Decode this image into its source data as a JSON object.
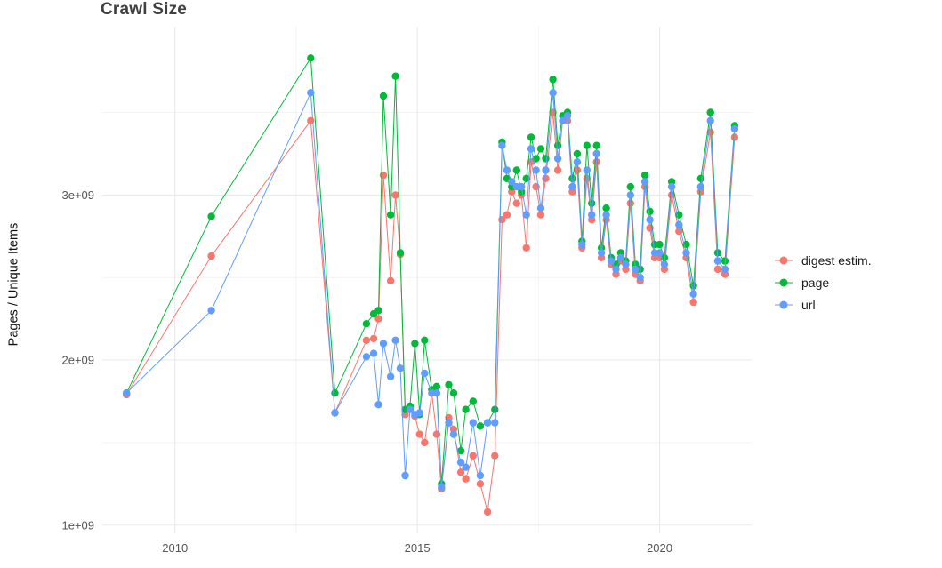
{
  "chart_data": {
    "type": "line",
    "title": "Crawl Size",
    "ylabel": "Pages / Unique Items",
    "xlabel": "",
    "legend_position": "right",
    "background": "#FFFFFF",
    "grid": {
      "major_color": "#E8E8E8",
      "minor_color": "#F4F4F4",
      "x_major": [
        2010,
        2015,
        2020
      ],
      "x_minor": [
        2012.5,
        2017.5
      ],
      "y_major": [
        1,
        2,
        3
      ],
      "y_minor": [
        1.5,
        2.5,
        3.5
      ]
    },
    "x_tick_labels": [
      "2010",
      "2015",
      "2020"
    ],
    "y_tick_labels": [
      "1e+09",
      "2e+09",
      "3e+09"
    ],
    "xlim": [
      2008.5,
      2021.9
    ],
    "ylim": [
      0.95,
      4.02
    ],
    "y_values_unit": "billions (x 1e9) of pages / unique items",
    "x": [
      2009.0,
      2010.75,
      2012.8,
      2013.3,
      2013.95,
      2014.1,
      2014.2,
      2014.3,
      2014.45,
      2014.55,
      2014.65,
      2014.75,
      2014.85,
      2014.95,
      2015.05,
      2015.15,
      2015.3,
      2015.4,
      2015.5,
      2015.65,
      2015.75,
      2015.9,
      2016.0,
      2016.15,
      2016.3,
      2016.45,
      2016.6,
      2016.75,
      2016.85,
      2016.95,
      2017.05,
      2017.15,
      2017.25,
      2017.35,
      2017.45,
      2017.55,
      2017.65,
      2017.8,
      2017.9,
      2018.0,
      2018.1,
      2018.2,
      2018.3,
      2018.4,
      2018.5,
      2018.6,
      2018.7,
      2018.8,
      2018.9,
      2019.0,
      2019.1,
      2019.2,
      2019.3,
      2019.4,
      2019.5,
      2019.6,
      2019.7,
      2019.8,
      2019.9,
      2020.0,
      2020.1,
      2020.25,
      2020.4,
      2020.55,
      2020.7,
      2020.85,
      2021.05,
      2021.2,
      2021.35,
      2021.55
    ],
    "series": [
      {
        "name": "digest estim.",
        "color": "#F8766D",
        "values": [
          1.79,
          2.63,
          3.45,
          1.68,
          2.12,
          2.13,
          2.25,
          3.12,
          2.48,
          3.0,
          2.64,
          1.67,
          1.7,
          1.66,
          1.55,
          1.5,
          1.8,
          1.55,
          1.22,
          1.65,
          1.58,
          1.32,
          1.28,
          1.42,
          1.25,
          1.08,
          1.42,
          2.85,
          2.88,
          3.02,
          2.95,
          3.0,
          2.68,
          3.2,
          3.05,
          2.88,
          3.1,
          3.5,
          3.15,
          3.45,
          3.45,
          3.02,
          3.15,
          2.68,
          3.1,
          2.85,
          3.2,
          2.62,
          2.85,
          2.58,
          2.52,
          2.6,
          2.55,
          2.95,
          2.52,
          2.48,
          3.05,
          2.8,
          2.62,
          2.62,
          2.55,
          3.0,
          2.78,
          2.62,
          2.35,
          3.02,
          3.38,
          2.55,
          2.52,
          3.35
        ]
      },
      {
        "name": "page",
        "color": "#00BA38",
        "values": [
          1.8,
          2.87,
          3.83,
          1.8,
          2.22,
          2.28,
          2.3,
          3.6,
          2.88,
          3.72,
          2.65,
          1.7,
          1.72,
          2.1,
          1.67,
          2.12,
          1.82,
          1.84,
          1.25,
          1.85,
          1.8,
          1.45,
          1.7,
          1.75,
          1.6,
          1.62,
          1.7,
          3.32,
          3.1,
          3.05,
          3.15,
          3.02,
          3.1,
          3.35,
          3.22,
          3.28,
          3.22,
          3.7,
          3.3,
          3.48,
          3.5,
          3.1,
          3.25,
          2.72,
          3.3,
          2.95,
          3.3,
          2.68,
          2.92,
          2.62,
          2.58,
          2.65,
          2.6,
          3.05,
          2.58,
          2.55,
          3.12,
          2.9,
          2.7,
          2.7,
          2.62,
          3.08,
          2.88,
          2.7,
          2.45,
          3.1,
          3.5,
          2.65,
          2.6,
          3.42
        ]
      },
      {
        "name": "url",
        "color": "#619CFF",
        "values": [
          1.8,
          2.3,
          3.62,
          1.68,
          2.02,
          2.04,
          1.73,
          2.1,
          1.9,
          2.12,
          1.95,
          1.3,
          1.7,
          1.67,
          1.68,
          1.92,
          1.8,
          1.8,
          1.23,
          1.62,
          1.55,
          1.38,
          1.35,
          1.62,
          1.3,
          1.62,
          1.62,
          3.3,
          3.15,
          3.08,
          3.05,
          3.05,
          2.88,
          3.28,
          3.15,
          2.92,
          3.15,
          3.62,
          3.22,
          3.45,
          3.48,
          3.05,
          3.2,
          2.7,
          3.15,
          2.88,
          3.25,
          2.65,
          2.88,
          2.6,
          2.55,
          2.62,
          2.58,
          3.0,
          2.55,
          2.5,
          3.08,
          2.85,
          2.65,
          2.65,
          2.58,
          3.05,
          2.82,
          2.65,
          2.4,
          3.05,
          3.45,
          2.6,
          2.55,
          3.4
        ]
      }
    ]
  }
}
